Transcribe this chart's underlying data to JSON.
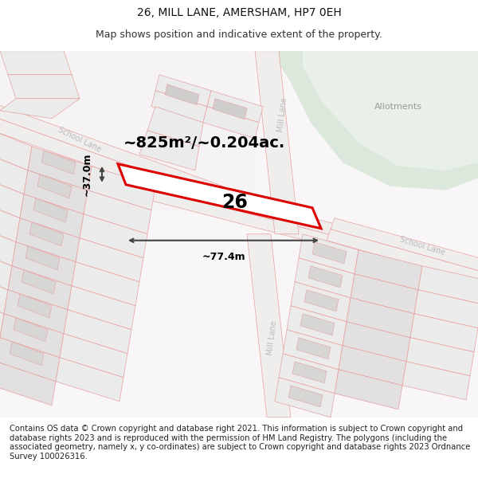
{
  "title": "26, MILL LANE, AMERSHAM, HP7 0EH",
  "subtitle": "Map shows position and indicative extent of the property.",
  "footer": "Contains OS data © Crown copyright and database right 2021. This information is subject to Crown copyright and database rights 2023 and is reproduced with the permission of HM Land Registry. The polygons (including the associated geometry, namely x, y co-ordinates) are subject to Crown copyright and database rights 2023 Ordnance Survey 100026316.",
  "area_label": "~825m²/~0.204ac.",
  "width_label": "~77.4m",
  "height_label": "~37.0m",
  "plot_number": "26",
  "bg_color": "#ffffff",
  "map_bg": "#ffffff",
  "green_area_color": "#dce8dc",
  "plot_line_color": "#e8a0a0",
  "highlight_color": "#dd0000",
  "highlight_fill": "#ffffff",
  "dim_line_color": "#444444",
  "road_label_color": "#bbbbbb",
  "allotments_label_color": "#999999",
  "title_fontsize": 10,
  "subtitle_fontsize": 9,
  "footer_fontsize": 7.2,
  "parcel_fill": "#ebebeb",
  "parcel_edge": "#e8a0a0"
}
